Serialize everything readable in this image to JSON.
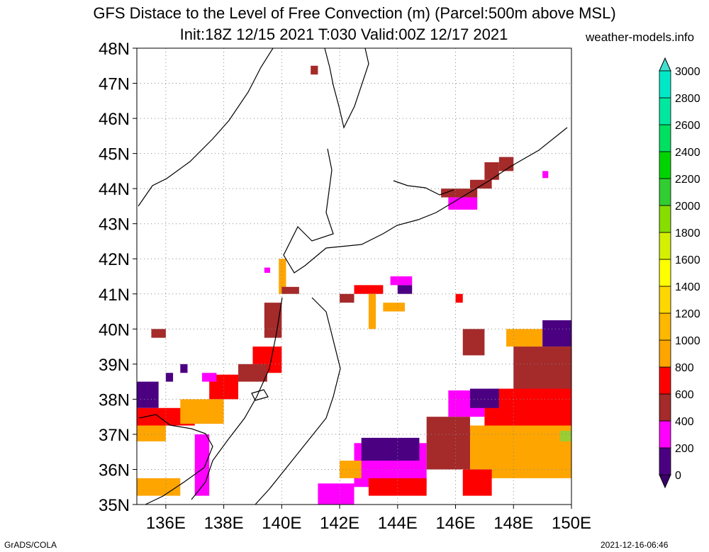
{
  "header": {
    "title_line1": "GFS Distace to the Level of Free Convection (m) (Parcel:500m above MSL)",
    "title_line2": "Init:18Z 12/15 2021 T:030 Valid:00Z 12/17 2021",
    "site": "weather-models.info"
  },
  "footer": {
    "left": "GrADS/COLA",
    "right": "2021-12-16-06:46"
  },
  "map": {
    "lon_labels": [
      "136E",
      "138E",
      "140E",
      "142E",
      "144E",
      "146E",
      "148E",
      "150E"
    ],
    "lat_labels": [
      "35N",
      "36N",
      "37N",
      "38N",
      "39N",
      "40N",
      "41N",
      "42N",
      "43N",
      "44N",
      "45N",
      "46N",
      "47N",
      "48N"
    ],
    "lon_range": [
      135,
      150
    ],
    "lat_range": [
      35,
      48
    ],
    "grid": "dotted",
    "field_cells": [
      {
        "lon": [
          141,
          141.25
        ],
        "lat": [
          47.25,
          47.5
        ],
        "color": "#a52a2a"
      },
      {
        "lon": [
          145.5,
          146.75
        ],
        "lat": [
          43.75,
          44.0
        ],
        "color": "#a52a2a"
      },
      {
        "lon": [
          146.5,
          147.25
        ],
        "lat": [
          44.0,
          44.25
        ],
        "color": "#a52a2a"
      },
      {
        "lon": [
          147.0,
          147.5
        ],
        "lat": [
          44.25,
          44.75
        ],
        "color": "#a52a2a"
      },
      {
        "lon": [
          147.5,
          148.0
        ],
        "lat": [
          44.5,
          44.9
        ],
        "color": "#a52a2a"
      },
      {
        "lon": [
          145.75,
          146.75
        ],
        "lat": [
          43.4,
          43.75
        ],
        "color": "#ff00ff"
      },
      {
        "lon": [
          149.0,
          149.2
        ],
        "lat": [
          44.3,
          44.5
        ],
        "color": "#ff00ff"
      },
      {
        "lon": [
          139.9,
          140.15
        ],
        "lat": [
          41.0,
          42.0
        ],
        "color": "#ffa500"
      },
      {
        "lon": [
          140.0,
          140.6
        ],
        "lat": [
          41.0,
          41.2
        ],
        "color": "#a52a2a"
      },
      {
        "lon": [
          139.4,
          139.6
        ],
        "lat": [
          41.6,
          41.75
        ],
        "color": "#ff00ff"
      },
      {
        "lon": [
          139.4,
          140.0
        ],
        "lat": [
          39.75,
          40.75
        ],
        "color": "#a52a2a"
      },
      {
        "lon": [
          139.0,
          140.0
        ],
        "lat": [
          38.75,
          39.5
        ],
        "color": "#ff0000"
      },
      {
        "lon": [
          138.5,
          139.5
        ],
        "lat": [
          38.5,
          39.0
        ],
        "color": "#a52a2a"
      },
      {
        "lon": [
          137.5,
          138.5
        ],
        "lat": [
          38.0,
          38.7
        ],
        "color": "#ff0000"
      },
      {
        "lon": [
          137.25,
          137.75
        ],
        "lat": [
          38.5,
          38.75
        ],
        "color": "#ff00ff"
      },
      {
        "lon": [
          135.0,
          135.75
        ],
        "lat": [
          37.75,
          38.5
        ],
        "color": "#4b0082"
      },
      {
        "lon": [
          135.0,
          137.0
        ],
        "lat": [
          37.25,
          37.75
        ],
        "color": "#ff0000"
      },
      {
        "lon": [
          135.0,
          136.0
        ],
        "lat": [
          36.8,
          37.25
        ],
        "color": "#ffa500"
      },
      {
        "lon": [
          136.5,
          138.0
        ],
        "lat": [
          37.3,
          38.0
        ],
        "color": "#ffa500"
      },
      {
        "lon": [
          137.0,
          137.5
        ],
        "lat": [
          36.0,
          37.0
        ],
        "color": "#ff00ff"
      },
      {
        "lon": [
          137.0,
          137.5
        ],
        "lat": [
          35.25,
          36.0
        ],
        "color": "#ff00ff"
      },
      {
        "lon": [
          135.0,
          136.5
        ],
        "lat": [
          35.25,
          35.75
        ],
        "color": "#ffa500"
      },
      {
        "lon": [
          135.5,
          136.0
        ],
        "lat": [
          39.75,
          40.0
        ],
        "color": "#a52a2a"
      },
      {
        "lon": [
          136.0,
          136.25
        ],
        "lat": [
          38.5,
          38.75
        ],
        "color": "#4b0082"
      },
      {
        "lon": [
          136.5,
          136.75
        ],
        "lat": [
          38.75,
          39.0
        ],
        "color": "#4b0082"
      },
      {
        "lon": [
          142.0,
          142.5
        ],
        "lat": [
          40.75,
          41.0
        ],
        "color": "#a52a2a"
      },
      {
        "lon": [
          142.5,
          143.5
        ],
        "lat": [
          41.0,
          41.25
        ],
        "color": "#ff0000"
      },
      {
        "lon": [
          143.0,
          143.25
        ],
        "lat": [
          40.0,
          41.0
        ],
        "color": "#ffa500"
      },
      {
        "lon": [
          143.5,
          144.25
        ],
        "lat": [
          40.5,
          40.75
        ],
        "color": "#ffa500"
      },
      {
        "lon": [
          144.0,
          144.5
        ],
        "lat": [
          41.0,
          41.25
        ],
        "color": "#4b0082"
      },
      {
        "lon": [
          143.75,
          144.5
        ],
        "lat": [
          41.25,
          41.5
        ],
        "color": "#ff00ff"
      },
      {
        "lon": [
          146.0,
          146.25
        ],
        "lat": [
          40.75,
          41.0
        ],
        "color": "#ff0000"
      },
      {
        "lon": [
          146.25,
          147.0
        ],
        "lat": [
          39.25,
          40.0
        ],
        "color": "#a52a2a"
      },
      {
        "lon": [
          147.75,
          149.0
        ],
        "lat": [
          39.5,
          40.0
        ],
        "color": "#ffa500"
      },
      {
        "lon": [
          149.0,
          150.0
        ],
        "lat": [
          39.5,
          40.25
        ],
        "color": "#4b0082"
      },
      {
        "lon": [
          148.0,
          150.0
        ],
        "lat": [
          38.0,
          39.5
        ],
        "color": "#a52a2a"
      },
      {
        "lon": [
          147.0,
          150.0
        ],
        "lat": [
          37.0,
          38.3
        ],
        "color": "#ff0000"
      },
      {
        "lon": [
          146.5,
          150.0
        ],
        "lat": [
          35.75,
          37.25
        ],
        "color": "#ffa500"
      },
      {
        "lon": [
          145.0,
          146.5
        ],
        "lat": [
          36.0,
          37.5
        ],
        "color": "#a52a2a"
      },
      {
        "lon": [
          145.75,
          147.0
        ],
        "lat": [
          37.5,
          38.25
        ],
        "color": "#ff00ff"
      },
      {
        "lon": [
          146.5,
          147.5
        ],
        "lat": [
          37.75,
          38.3
        ],
        "color": "#4b0082"
      },
      {
        "lon": [
          142.5,
          145.0
        ],
        "lat": [
          35.5,
          36.75
        ],
        "color": "#ff00ff"
      },
      {
        "lon": [
          142.75,
          144.75
        ],
        "lat": [
          36.25,
          36.9
        ],
        "color": "#4b0082"
      },
      {
        "lon": [
          143.0,
          145.0
        ],
        "lat": [
          35.25,
          35.75
        ],
        "color": "#ff0000"
      },
      {
        "lon": [
          141.25,
          142.5
        ],
        "lat": [
          35.0,
          35.6
        ],
        "color": "#ff00ff"
      },
      {
        "lon": [
          142.0,
          142.75
        ],
        "lat": [
          35.75,
          36.25
        ],
        "color": "#ffa500"
      },
      {
        "lon": [
          146.25,
          147.25
        ],
        "lat": [
          35.25,
          36.0
        ],
        "color": "#ff0000"
      },
      {
        "lon": [
          149.6,
          150.0
        ],
        "lat": [
          36.8,
          37.1
        ],
        "color": "#9acd32"
      }
    ]
  },
  "colorbar": {
    "labels": [
      "0",
      "200",
      "400",
      "600",
      "800",
      "1000",
      "1200",
      "1400",
      "1600",
      "1800",
      "2000",
      "2200",
      "2400",
      "2600",
      "2800",
      "3000"
    ],
    "colors": [
      "#4b0082",
      "#ff00ff",
      "#a52a2a",
      "#ff0000",
      "#ffa500",
      "#ffb800",
      "#ffd700",
      "#ffff00",
      "#d4ef00",
      "#88dd00",
      "#32cd32",
      "#00d400",
      "#00e060",
      "#00e8a0",
      "#00e8c8",
      "#00e0e0"
    ],
    "under_color": "#3b006a",
    "over_color": "#40e0d0"
  }
}
